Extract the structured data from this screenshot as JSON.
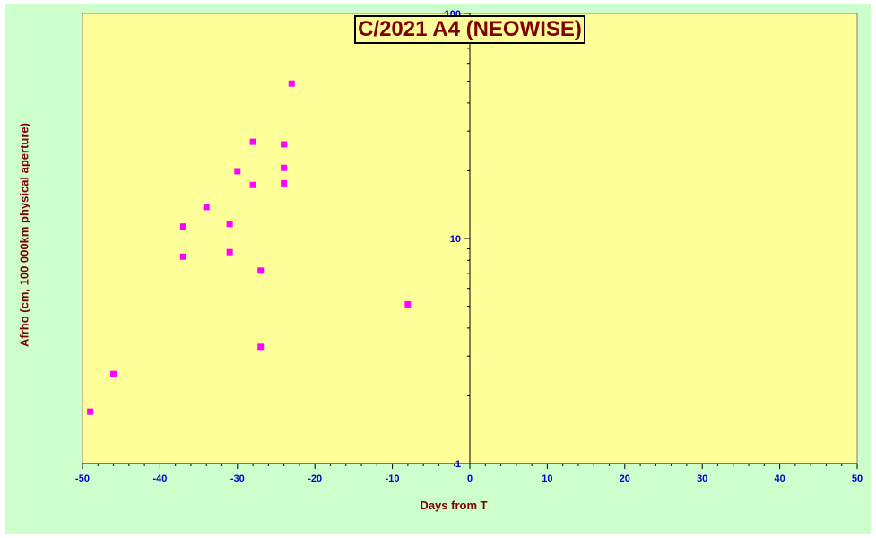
{
  "chart_data": {
    "type": "scatter",
    "title": "C/2021 A4 (NEOWISE)",
    "xlabel": "Days from  T",
    "ylabel": "Afrho (cm, 100 000km physical aperture)",
    "xlim": [
      -50,
      50
    ],
    "ylim": [
      1,
      100
    ],
    "yscale": "log",
    "xticks": [
      -50,
      -40,
      -30,
      -20,
      -10,
      0,
      10,
      20,
      30,
      40,
      50
    ],
    "yticks": [
      1,
      10,
      100
    ],
    "grid": false,
    "legend": "none",
    "colors": {
      "plot_bg": "#ffff99",
      "outer_bg": "#ccffcc",
      "marker": "#ff00ff",
      "tick_labels": "#0000cc",
      "labels": "#800000"
    },
    "points": [
      {
        "x": -49.0,
        "y": 1.7
      },
      {
        "x": -46.0,
        "y": 2.5
      },
      {
        "x": -37.0,
        "y": 11.3
      },
      {
        "x": -37.0,
        "y": 8.3
      },
      {
        "x": -34.0,
        "y": 13.8
      },
      {
        "x": -31.0,
        "y": 11.6
      },
      {
        "x": -31.0,
        "y": 8.7
      },
      {
        "x": -30.0,
        "y": 19.9
      },
      {
        "x": -28.0,
        "y": 26.9
      },
      {
        "x": -28.0,
        "y": 17.3
      },
      {
        "x": -27.0,
        "y": 7.2
      },
      {
        "x": -27.0,
        "y": 3.3
      },
      {
        "x": -24.0,
        "y": 26.2
      },
      {
        "x": -24.0,
        "y": 20.6
      },
      {
        "x": -24.0,
        "y": 17.6
      },
      {
        "x": -23.0,
        "y": 48.8
      },
      {
        "x": -8.0,
        "y": 5.1
      }
    ]
  }
}
